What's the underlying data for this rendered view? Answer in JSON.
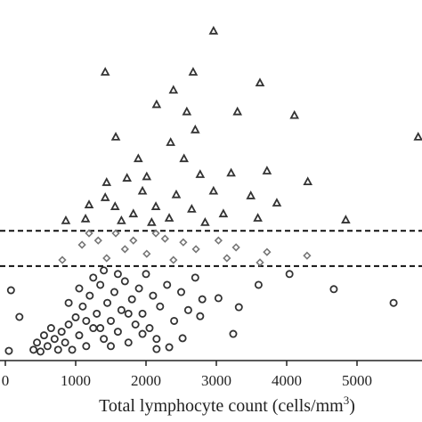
{
  "chart_data": {
    "type": "scatter",
    "xlabel": {
      "text": "Total lymphocyte count (cells/mm",
      "sup": "3",
      "end": ")"
    },
    "xlim": [
      -76,
      5924
    ],
    "xticks": [
      0,
      1000,
      2000,
      3000,
      4000,
      5000
    ],
    "ylim": [
      0,
      100
    ],
    "reference_lines": [
      36,
      26.2
    ],
    "series": [
      {
        "marker": "circle",
        "color": "#333333",
        "x": [
          80,
          200,
          50,
          4670,
          5520,
          4040,
          3600,
          3320,
          3240,
          3030,
          2770,
          2520,
          2330,
          2150,
          1950,
          600,
          700,
          750,
          800,
          850,
          900,
          950,
          1000,
          1050,
          1100,
          1150,
          1200,
          1250,
          1300,
          1350,
          1400,
          1450,
          1500,
          1550,
          1600,
          1650,
          1700,
          1750,
          1800,
          1850,
          1900,
          1950,
          2000,
          2050,
          2100,
          2200,
          2300,
          2400,
          2500,
          2600,
          2700,
          2800,
          400,
          450,
          500,
          550,
          650,
          1050,
          1250,
          1400,
          1600,
          1150,
          1350,
          1500,
          900,
          1750,
          2150
        ],
        "y": [
          19.5,
          12.1,
          2.7,
          19.8,
          16,
          24,
          21,
          14.8,
          7.4,
          17.3,
          12.3,
          6.2,
          3.7,
          3.2,
          7.4,
          4,
          6,
          3,
          8,
          5,
          10,
          3,
          12,
          7,
          15,
          4,
          18,
          9,
          13,
          21,
          6,
          16,
          11,
          19,
          8,
          14,
          22,
          5,
          17,
          10,
          20,
          13,
          24,
          9,
          18,
          15,
          21,
          11,
          19,
          14,
          23,
          17,
          3,
          5,
          2.5,
          7,
          9,
          20,
          23,
          25,
          24,
          11,
          9,
          4,
          16,
          13,
          6
        ]
      },
      {
        "marker": "diamond",
        "color": "#777777",
        "x": [
          810,
          1090,
          1320,
          1570,
          1820,
          2010,
          2270,
          2530,
          2710,
          3030,
          3280,
          3620,
          3720,
          4290,
          1440,
          1700,
          2390,
          3150,
          1190,
          2140
        ],
        "y": [
          27.9,
          32.1,
          33.3,
          35.3,
          33.3,
          29.6,
          33.8,
          32.8,
          30.9,
          33.3,
          31.4,
          27.2,
          30.1,
          29.1,
          28.4,
          30.9,
          27.9,
          28.4,
          35.3,
          35.3
        ]
      },
      {
        "marker": "triangle",
        "color": "#333333",
        "x": [
          2960,
          1420,
          2670,
          3620,
          2390,
          2150,
          2580,
          3300,
          4110,
          1570,
          2350,
          5870,
          2700,
          1890,
          2540,
          1730,
          2770,
          3210,
          3720,
          4300,
          1440,
          1950,
          2430,
          2960,
          3490,
          3860,
          1190,
          1560,
          2140,
          2650,
          3100,
          860,
          1140,
          1820,
          2330,
          4840,
          3590,
          2080,
          2840,
          1650,
          1420,
          2010
        ],
        "y": [
          91.4,
          80,
          80,
          77,
          75,
          71,
          69,
          69,
          68,
          62,
          60.5,
          62,
          64,
          56,
          56,
          50.6,
          51.6,
          52,
          52.6,
          49.6,
          49.4,
          47,
          46,
          47,
          45.7,
          43.7,
          43.2,
          42.7,
          42.7,
          42,
          40.7,
          38.8,
          39.3,
          40.7,
          39.5,
          39,
          39.5,
          38.3,
          38.3,
          38.8,
          45.2,
          51
        ]
      }
    ]
  }
}
